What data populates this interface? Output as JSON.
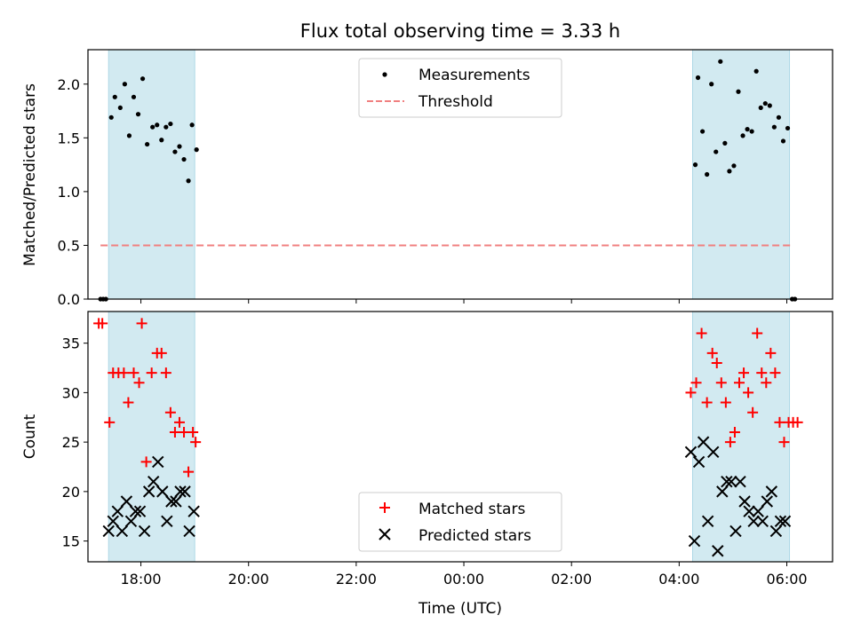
{
  "title": "Flux total observing time = 3.33 h",
  "xlabel": "Time (UTC)",
  "x_ticks": [
    "18:00",
    "20:00",
    "22:00",
    "00:00",
    "02:00",
    "04:00",
    "06:00"
  ],
  "colors": {
    "shade": "#add8e6",
    "threshold": "#f08080",
    "matched": "#ff0000",
    "measured": "#000000"
  },
  "chart_data": [
    {
      "type": "scatter",
      "ylabel": "Matched/Predicted stars",
      "xlim": [
        "17:01",
        "06:51"
      ],
      "ylim": [
        0,
        2.32
      ],
      "y_ticks": [
        "0.0",
        "0.5",
        "1.0",
        "1.5",
        "2.0"
      ],
      "shaded_spans": [
        [
          "17:24",
          "19:00"
        ],
        [
          "04:15",
          "06:03"
        ]
      ],
      "threshold": {
        "y": 0.5,
        "x_range": [
          "17:15",
          "06:06"
        ]
      },
      "legend": {
        "placement": "upper center",
        "entries": [
          "Measurements",
          "Threshold"
        ]
      },
      "series": [
        {
          "name": "Measurements",
          "points": [
            [
              "17:15",
              0
            ],
            [
              "17:18",
              0
            ],
            [
              "17:21",
              0
            ],
            [
              "17:27",
              1.69
            ],
            [
              "17:31",
              1.88
            ],
            [
              "17:37",
              1.78
            ],
            [
              "17:42",
              2.0
            ],
            [
              "17:47",
              1.52
            ],
            [
              "17:52",
              1.88
            ],
            [
              "17:57",
              1.72
            ],
            [
              "18:02",
              2.05
            ],
            [
              "18:07",
              1.44
            ],
            [
              "18:13",
              1.6
            ],
            [
              "18:18",
              1.62
            ],
            [
              "18:23",
              1.48
            ],
            [
              "18:28",
              1.6
            ],
            [
              "18:33",
              1.63
            ],
            [
              "18:38",
              1.37
            ],
            [
              "18:43",
              1.42
            ],
            [
              "18:48",
              1.3
            ],
            [
              "18:53",
              1.1
            ],
            [
              "18:57",
              1.62
            ],
            [
              "19:02",
              1.39
            ],
            [
              "04:18",
              1.25
            ],
            [
              "04:21",
              2.06
            ],
            [
              "04:26",
              1.56
            ],
            [
              "04:31",
              1.16
            ],
            [
              "04:36",
              2.0
            ],
            [
              "04:41",
              1.37
            ],
            [
              "04:46",
              2.21
            ],
            [
              "04:51",
              1.45
            ],
            [
              "04:56",
              1.19
            ],
            [
              "05:01",
              1.24
            ],
            [
              "05:06",
              1.93
            ],
            [
              "05:11",
              1.52
            ],
            [
              "05:16",
              1.58
            ],
            [
              "05:21",
              1.56
            ],
            [
              "05:26",
              2.12
            ],
            [
              "05:31",
              1.78
            ],
            [
              "05:36",
              1.82
            ],
            [
              "05:41",
              1.8
            ],
            [
              "05:46",
              1.6
            ],
            [
              "05:51",
              1.69
            ],
            [
              "05:56",
              1.47
            ],
            [
              "06:01",
              1.59
            ],
            [
              "06:06",
              0
            ],
            [
              "06:09",
              0
            ]
          ]
        }
      ]
    },
    {
      "type": "scatter",
      "ylabel": "Count",
      "xlim": [
        "17:01",
        "06:51"
      ],
      "ylim": [
        12.9,
        38.2
      ],
      "y_ticks": [
        "15",
        "20",
        "25",
        "30",
        "35"
      ],
      "shaded_spans": [
        [
          "17:24",
          "19:00"
        ],
        [
          "04:15",
          "06:03"
        ]
      ],
      "legend": {
        "placement": "lower center",
        "entries": [
          "Matched stars",
          "Predicted stars"
        ]
      },
      "series": [
        {
          "name": "Matched stars",
          "marker": "plus",
          "points": [
            [
              "17:13",
              37
            ],
            [
              "17:17",
              37
            ],
            [
              "17:25",
              27
            ],
            [
              "17:29",
              32
            ],
            [
              "17:35",
              32
            ],
            [
              "17:41",
              32
            ],
            [
              "17:46",
              29
            ],
            [
              "17:52",
              32
            ],
            [
              "17:58",
              31
            ],
            [
              "18:01",
              37
            ],
            [
              "18:06",
              23
            ],
            [
              "18:12",
              32
            ],
            [
              "18:18",
              34
            ],
            [
              "18:23",
              34
            ],
            [
              "18:28",
              32
            ],
            [
              "18:33",
              28
            ],
            [
              "18:38",
              26
            ],
            [
              "18:43",
              27
            ],
            [
              "18:48",
              26
            ],
            [
              "18:53",
              22
            ],
            [
              "18:58",
              26
            ],
            [
              "19:01",
              25
            ],
            [
              "04:13",
              30
            ],
            [
              "04:19",
              31
            ],
            [
              "04:25",
              36
            ],
            [
              "04:31",
              29
            ],
            [
              "04:37",
              34
            ],
            [
              "04:42",
              33
            ],
            [
              "04:47",
              31
            ],
            [
              "04:52",
              29
            ],
            [
              "04:57",
              25
            ],
            [
              "05:02",
              26
            ],
            [
              "05:07",
              31
            ],
            [
              "05:12",
              32
            ],
            [
              "05:17",
              30
            ],
            [
              "05:22",
              28
            ],
            [
              "05:27",
              36
            ],
            [
              "05:32",
              32
            ],
            [
              "05:37",
              31
            ],
            [
              "05:42",
              34
            ],
            [
              "05:47",
              32
            ],
            [
              "05:52",
              27
            ],
            [
              "05:57",
              25
            ],
            [
              "06:02",
              27
            ],
            [
              "06:07",
              27
            ],
            [
              "06:12",
              27
            ]
          ]
        },
        {
          "name": "Predicted stars",
          "marker": "x",
          "points": [
            [
              "17:24",
              16
            ],
            [
              "17:29",
              17
            ],
            [
              "17:34",
              18
            ],
            [
              "17:39",
              16
            ],
            [
              "17:44",
              19
            ],
            [
              "17:49",
              17
            ],
            [
              "17:54",
              18
            ],
            [
              "17:59",
              18
            ],
            [
              "18:04",
              16
            ],
            [
              "18:09",
              20
            ],
            [
              "18:14",
              21
            ],
            [
              "18:19",
              23
            ],
            [
              "18:24",
              20
            ],
            [
              "18:29",
              17
            ],
            [
              "18:34",
              19
            ],
            [
              "18:39",
              19
            ],
            [
              "18:44",
              20
            ],
            [
              "18:49",
              20
            ],
            [
              "18:54",
              16
            ],
            [
              "18:59",
              18
            ],
            [
              "04:13",
              24
            ],
            [
              "04:17",
              15
            ],
            [
              "04:22",
              23
            ],
            [
              "04:27",
              25
            ],
            [
              "04:32",
              17
            ],
            [
              "04:38",
              24
            ],
            [
              "04:43",
              14
            ],
            [
              "04:48",
              20
            ],
            [
              "04:53",
              21
            ],
            [
              "04:58",
              21
            ],
            [
              "05:03",
              16
            ],
            [
              "05:08",
              21
            ],
            [
              "05:13",
              19
            ],
            [
              "05:18",
              18
            ],
            [
              "05:23",
              17
            ],
            [
              "05:28",
              18
            ],
            [
              "05:33",
              17
            ],
            [
              "05:38",
              19
            ],
            [
              "05:43",
              20
            ],
            [
              "05:48",
              16
            ],
            [
              "05:53",
              17
            ],
            [
              "05:58",
              17
            ]
          ]
        }
      ]
    }
  ]
}
